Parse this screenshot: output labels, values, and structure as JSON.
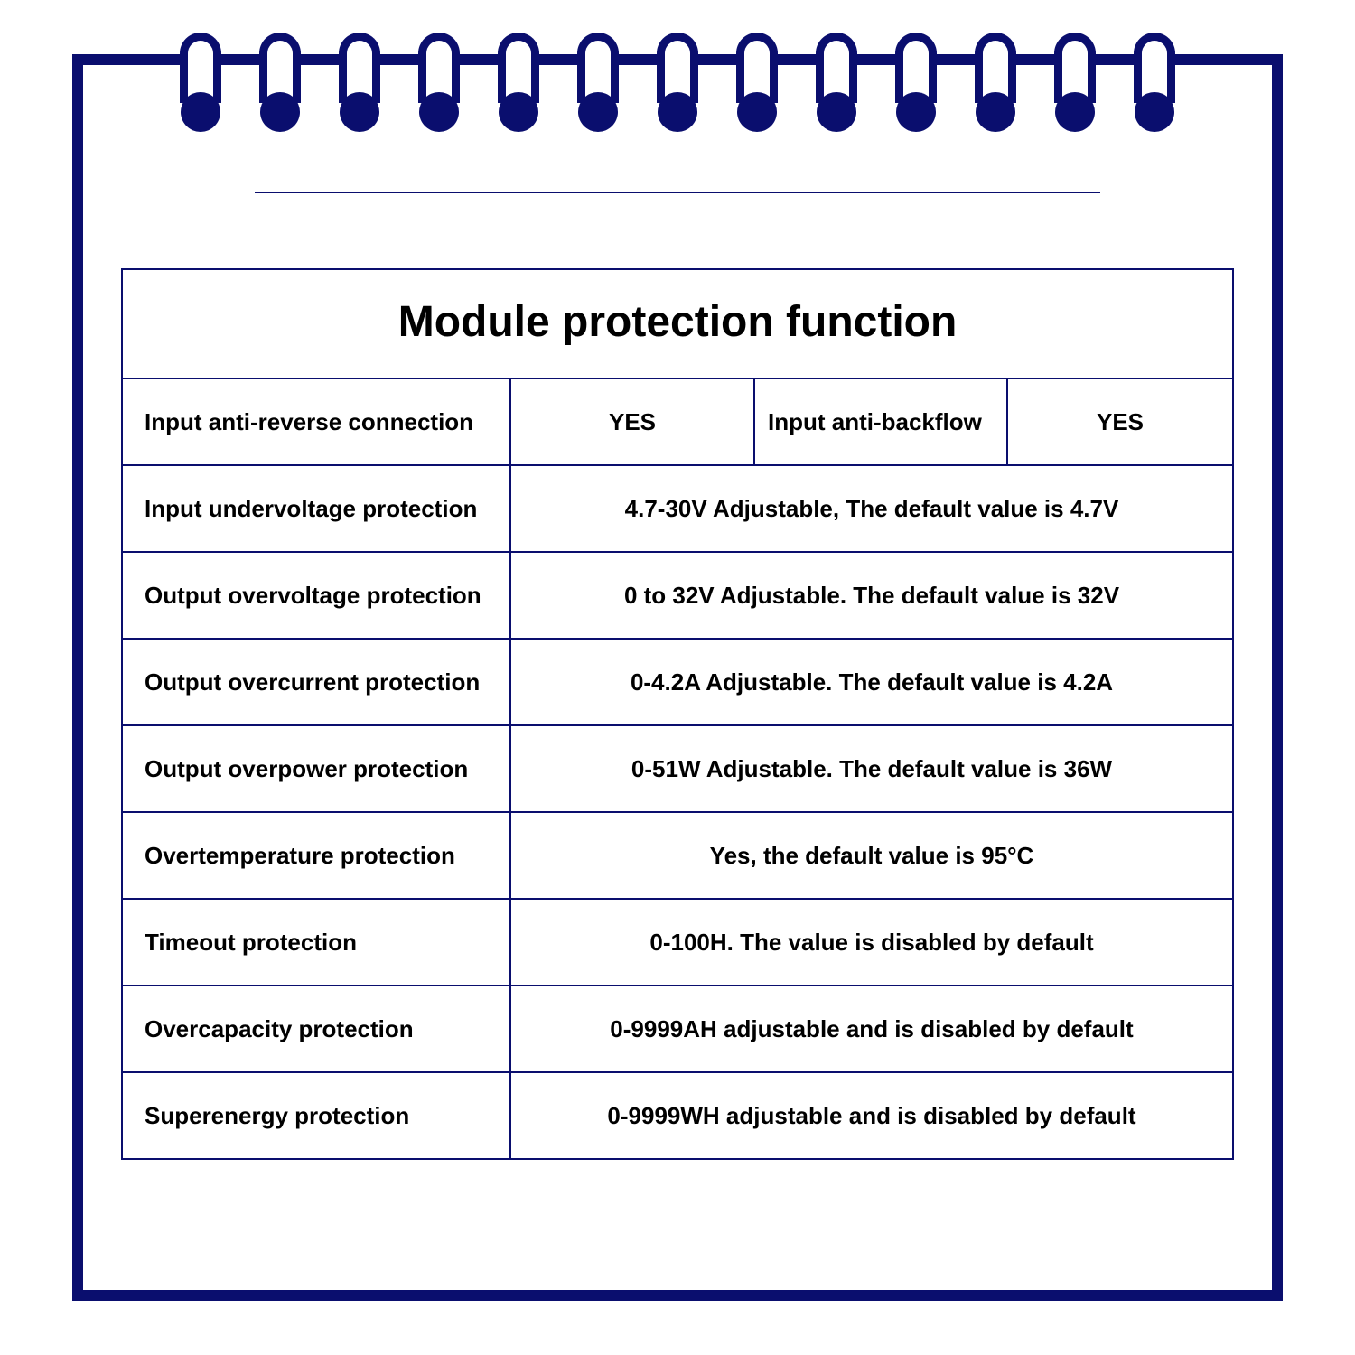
{
  "colors": {
    "border": "#0a0e6e",
    "accent": "#0a0e6e",
    "background": "#ffffff",
    "text": "#000000"
  },
  "spiral_count": 13,
  "table": {
    "title": "Module protection function",
    "title_fontsize": 48,
    "cell_fontsize": 26,
    "row1": {
      "label": "Input anti-reverse connection",
      "value1": "YES",
      "label2": "Input anti-backflow",
      "value2": "YES"
    },
    "rows": [
      {
        "label": "Input undervoltage protection",
        "value": "4.7-30V Adjustable, The default value is 4.7V"
      },
      {
        "label": "Output overvoltage protection",
        "value": "0 to 32V Adjustable. The default value is 32V"
      },
      {
        "label": "Output overcurrent protection",
        "value": "0-4.2A Adjustable. The default value is 4.2A"
      },
      {
        "label": "Output overpower protection",
        "value": "0-51W Adjustable. The default value is 36W"
      },
      {
        "label": "Overtemperature protection",
        "value": "Yes, the default value is 95°C"
      },
      {
        "label": "Timeout protection",
        "value": "0-100H. The value is disabled by default"
      },
      {
        "label": "Overcapacity protection",
        "value": "0-9999AH adjustable and is disabled by default"
      },
      {
        "label": "Superenergy protection",
        "value": "0-9999WH adjustable and is disabled by default"
      }
    ]
  }
}
